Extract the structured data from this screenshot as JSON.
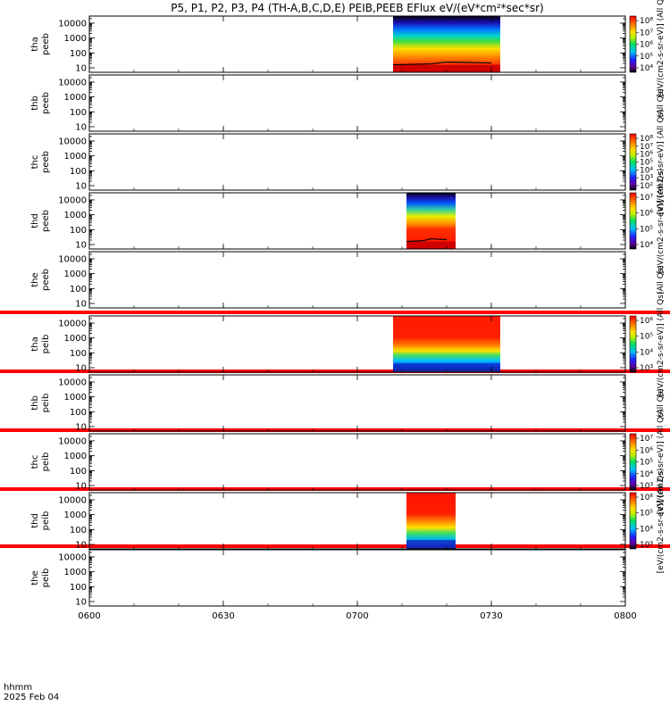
{
  "title": "P5, P1, P2, P3, P4 (TH-A,B,C,D,E) PEIB,PEEB EFlux eV/(eV*cm²*sec*sr)",
  "time_label": "hhmm",
  "date_label": "2025 Feb 04",
  "colors": {
    "separator": "#ff0000",
    "axis": "#000000",
    "background": "#ffffff"
  },
  "chart_data": {
    "type": "heatmap",
    "x_ticks": [
      "0600",
      "0630",
      "0700",
      "0730",
      "0800"
    ],
    "y_ticks": [
      "10",
      "100",
      "1000",
      "10000"
    ],
    "y_scale": "log",
    "panels": [
      {
        "name": "tha_peeb",
        "label_top": "tha",
        "label_bottom": "peeb",
        "data_start": "0708",
        "data_end": "0732",
        "cb_label": "[eV/(cm2-s-sr-eV)] (All Qs)",
        "cb_ticks": [
          "10⁸",
          "10⁷",
          "10⁶",
          "10⁵",
          "10⁴"
        ],
        "style": "electron"
      },
      {
        "name": "thb_peeb",
        "label_top": "thb",
        "label_bottom": "peeb",
        "data_start": null,
        "data_end": null,
        "cb_label": "(All Qs)",
        "cb_ticks": [],
        "style": "none"
      },
      {
        "name": "thc_peeb",
        "label_top": "thc",
        "label_bottom": "peeb",
        "data_start": null,
        "data_end": null,
        "cb_label": "[eV/(cm2-s-sr-eV)] (All Qs)",
        "cb_ticks": [
          "10⁸",
          "10⁷",
          "10⁶",
          "10⁵",
          "10⁴",
          "10³",
          "10²"
        ],
        "style": "none"
      },
      {
        "name": "thd_peeb",
        "label_top": "thd",
        "label_bottom": "peeb",
        "data_start": "0711",
        "data_end": "0722",
        "cb_label": "[eV/(cm2-s-sr-eV)] (All Qs)",
        "cb_ticks": [
          "10⁷",
          "10⁶",
          "10⁵",
          "10⁴"
        ],
        "style": "electron2"
      },
      {
        "name": "the_peeb",
        "label_top": "the",
        "label_bottom": "peeb",
        "data_start": null,
        "data_end": null,
        "cb_label": "(All Qs)",
        "cb_ticks": [],
        "style": "none"
      },
      {
        "name": "tha_peib",
        "label_top": "tha",
        "label_bottom": "peib",
        "data_start": "0708",
        "data_end": "0732",
        "cb_label": "[eV/(cm2-s-sr-eV)] (All Qs)",
        "cb_ticks": [
          "10⁶",
          "10⁵",
          "10⁴",
          "10³"
        ],
        "style": "ion"
      },
      {
        "name": "thb_peib",
        "label_top": "thb",
        "label_bottom": "peib",
        "data_start": null,
        "data_end": null,
        "cb_label": "(All Qs)",
        "cb_ticks": [],
        "style": "none"
      },
      {
        "name": "thc_peib",
        "label_top": "thc",
        "label_bottom": "peib",
        "data_start": null,
        "data_end": null,
        "cb_label": "[eV/(cm2-s-sr-eV)] (All Qs)",
        "cb_ticks": [
          "10⁷",
          "10⁶",
          "10⁵",
          "10⁴",
          "10³"
        ],
        "style": "none"
      },
      {
        "name": "thd_peib",
        "label_top": "thd",
        "label_bottom": "peib",
        "data_start": "0711",
        "data_end": "0722",
        "cb_label": "[eV/(cm2-s-sr-eV)] (All Qs)",
        "cb_ticks": [
          "10⁶",
          "10⁵",
          "10⁴",
          "10³"
        ],
        "style": "ion2"
      },
      {
        "name": "the_peib",
        "label_top": "the",
        "label_bottom": "peib",
        "data_start": null,
        "data_end": null,
        "cb_label": "",
        "cb_ticks": [],
        "style": "none"
      }
    ]
  }
}
